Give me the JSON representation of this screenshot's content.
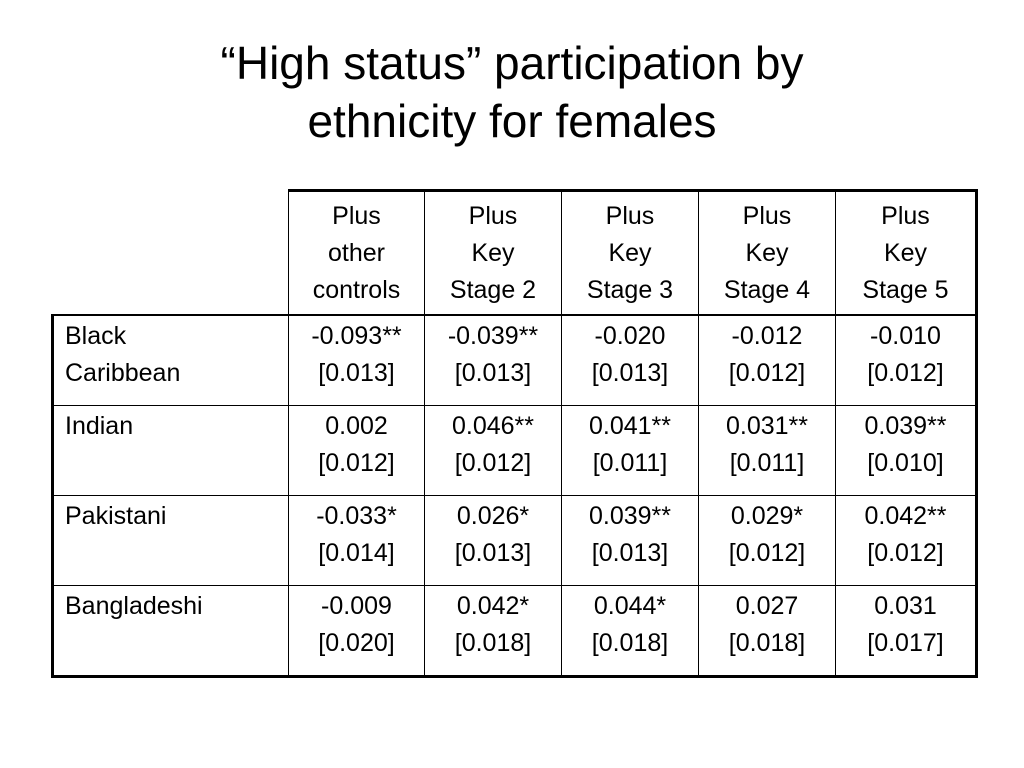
{
  "slide": {
    "title_line1": "“High status” participation by",
    "title_line2": "ethnicity for females"
  },
  "table": {
    "columns": [
      {
        "line1": "Plus",
        "line2": "other",
        "line3": "controls"
      },
      {
        "line1": "Plus",
        "line2": "Key",
        "line3": "Stage 2"
      },
      {
        "line1": "Plus",
        "line2": "Key",
        "line3": "Stage 3"
      },
      {
        "line1": "Plus",
        "line2": "Key",
        "line3": "Stage 4"
      },
      {
        "line1": "Plus",
        "line2": "Key",
        "line3": "Stage 5"
      }
    ],
    "rows": [
      {
        "label_line1": "Black",
        "label_line2": "Caribbean",
        "cells": [
          {
            "coef": "-0.093**",
            "se": "[0.013]"
          },
          {
            "coef": "-0.039**",
            "se": "[0.013]"
          },
          {
            "coef": "-0.020",
            "se": "[0.013]"
          },
          {
            "coef": "-0.012",
            "se": "[0.012]"
          },
          {
            "coef": "-0.010",
            "se": "[0.012]"
          }
        ]
      },
      {
        "label_line1": "Indian",
        "label_line2": "",
        "cells": [
          {
            "coef": "0.002",
            "se": "[0.012]"
          },
          {
            "coef": "0.046**",
            "se": "[0.012]"
          },
          {
            "coef": "0.041**",
            "se": "[0.011]"
          },
          {
            "coef": "0.031**",
            "se": "[0.011]"
          },
          {
            "coef": "0.039**",
            "se": "[0.010]"
          }
        ]
      },
      {
        "label_line1": "Pakistani",
        "label_line2": "",
        "cells": [
          {
            "coef": "-0.033*",
            "se": "[0.014]"
          },
          {
            "coef": "0.026*",
            "se": "[0.013]"
          },
          {
            "coef": "0.039**",
            "se": "[0.013]"
          },
          {
            "coef": "0.029*",
            "se": "[0.012]"
          },
          {
            "coef": "0.042**",
            "se": "[0.012]"
          }
        ]
      },
      {
        "label_line1": "Bangladeshi",
        "label_line2": "",
        "cells": [
          {
            "coef": "-0.009",
            "se": "[0.020]"
          },
          {
            "coef": "0.042*",
            "se": "[0.018]"
          },
          {
            "coef": "0.044*",
            "se": "[0.018]"
          },
          {
            "coef": "0.027",
            "se": "[0.018]"
          },
          {
            "coef": "0.031",
            "se": "[0.017]"
          }
        ]
      }
    ]
  }
}
